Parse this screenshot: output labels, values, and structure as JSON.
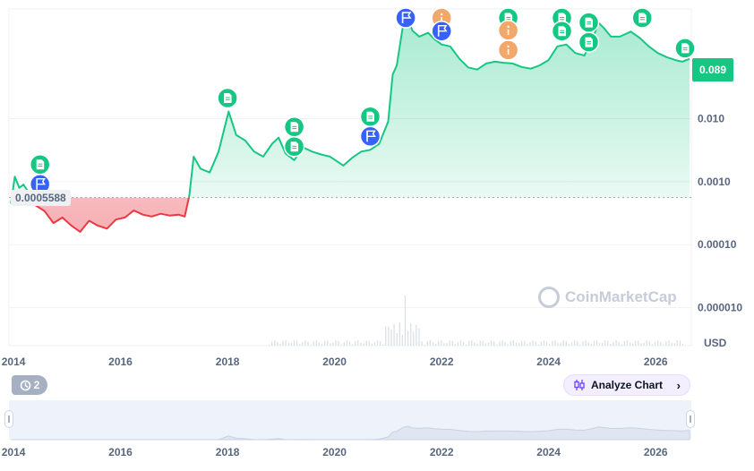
{
  "chart_data": {
    "type": "area",
    "scale": "log",
    "currency": "USD",
    "y_ticks": [
      {
        "label": "0.010",
        "value": 0.01
      },
      {
        "label": "0.0010",
        "value": 0.001
      },
      {
        "label": "0.00010",
        "value": 0.0001
      },
      {
        "label": "0.000010",
        "value": 1e-05
      }
    ],
    "x_ticks": [
      "2014",
      "2016",
      "2018",
      "2020",
      "2022",
      "2024",
      "2026"
    ],
    "baseline": {
      "label": "0.0005588",
      "value": 0.0005588
    },
    "current_price": {
      "label": "0.089",
      "value": 0.089
    },
    "series": [
      {
        "colors": {
          "above": "#16c784",
          "below": "#ea3943"
        },
        "points": [
          [
            "2013-12-15",
            0.00045
          ],
          [
            "2014-01-10",
            0.0012
          ],
          [
            "2014-02-10",
            0.0008
          ],
          [
            "2014-03-10",
            0.0009
          ],
          [
            "2014-04-10",
            0.0007
          ],
          [
            "2014-06-01",
            0.00042
          ],
          [
            "2014-08-01",
            0.00034
          ],
          [
            "2014-10-01",
            0.00022
          ],
          [
            "2014-12-01",
            0.00027
          ],
          [
            "2015-02-01",
            0.0002
          ],
          [
            "2015-04-01",
            0.00016
          ],
          [
            "2015-06-01",
            0.00024
          ],
          [
            "2015-08-01",
            0.0002
          ],
          [
            "2015-10-01",
            0.00018
          ],
          [
            "2015-12-01",
            0.00025
          ],
          [
            "2016-02-01",
            0.00027
          ],
          [
            "2016-04-01",
            0.00035
          ],
          [
            "2016-06-01",
            0.0003
          ],
          [
            "2016-08-01",
            0.00028
          ],
          [
            "2016-10-01",
            0.00031
          ],
          [
            "2016-12-01",
            0.00029
          ],
          [
            "2017-02-01",
            0.0003
          ],
          [
            "2017-03-15",
            0.00028
          ],
          [
            "2017-04-15",
            0.0006
          ],
          [
            "2017-05-15",
            0.0025
          ],
          [
            "2017-07-01",
            0.0016
          ],
          [
            "2017-09-01",
            0.0014
          ],
          [
            "2017-11-01",
            0.003
          ],
          [
            "2018-01-08",
            0.013
          ],
          [
            "2018-03-01",
            0.0055
          ],
          [
            "2018-05-01",
            0.0045
          ],
          [
            "2018-07-01",
            0.003
          ],
          [
            "2018-09-01",
            0.0025
          ],
          [
            "2018-11-01",
            0.004
          ],
          [
            "2018-12-15",
            0.005
          ],
          [
            "2019-02-01",
            0.0028
          ],
          [
            "2019-04-01",
            0.0022
          ],
          [
            "2019-06-01",
            0.0035
          ],
          [
            "2019-08-01",
            0.003
          ],
          [
            "2019-10-01",
            0.0027
          ],
          [
            "2019-12-01",
            0.0025
          ],
          [
            "2020-03-01",
            0.0018
          ],
          [
            "2020-05-01",
            0.0024
          ],
          [
            "2020-07-01",
            0.003
          ],
          [
            "2020-09-01",
            0.0032
          ],
          [
            "2020-11-01",
            0.004
          ],
          [
            "2021-01-01",
            0.009
          ],
          [
            "2021-02-01",
            0.05
          ],
          [
            "2021-03-01",
            0.07
          ],
          [
            "2021-04-10",
            0.28
          ],
          [
            "2021-05-15",
            0.4
          ],
          [
            "2021-06-15",
            0.25
          ],
          [
            "2021-08-01",
            0.2
          ],
          [
            "2021-10-01",
            0.23
          ],
          [
            "2021-11-15",
            0.18
          ],
          [
            "2022-01-01",
            0.15
          ],
          [
            "2022-03-01",
            0.14
          ],
          [
            "2022-05-01",
            0.09
          ],
          [
            "2022-07-01",
            0.065
          ],
          [
            "2022-09-01",
            0.06
          ],
          [
            "2022-11-01",
            0.075
          ],
          [
            "2023-01-01",
            0.08
          ],
          [
            "2023-03-01",
            0.077
          ],
          [
            "2023-05-01",
            0.075
          ],
          [
            "2023-07-01",
            0.066
          ],
          [
            "2023-09-01",
            0.062
          ],
          [
            "2023-11-01",
            0.07
          ],
          [
            "2024-01-01",
            0.085
          ],
          [
            "2024-03-01",
            0.14
          ],
          [
            "2024-05-01",
            0.15
          ],
          [
            "2024-07-01",
            0.11
          ],
          [
            "2024-09-01",
            0.1
          ],
          [
            "2024-11-01",
            0.2
          ],
          [
            "2024-12-08",
            0.33
          ],
          [
            "2025-01-15",
            0.27
          ],
          [
            "2025-03-01",
            0.2
          ],
          [
            "2025-05-01",
            0.2
          ],
          [
            "2025-07-15",
            0.24
          ],
          [
            "2025-09-15",
            0.19
          ],
          [
            "2025-11-15",
            0.14
          ],
          [
            "2026-01-15",
            0.11
          ],
          [
            "2026-03-15",
            0.095
          ],
          [
            "2026-05-15",
            0.085
          ],
          [
            "2026-07-01",
            0.08
          ],
          [
            "2026-08-20",
            0.089
          ]
        ]
      }
    ],
    "events": [
      {
        "date": "2014-07-01",
        "kind": "doc",
        "level": 1
      },
      {
        "date": "2014-07-01",
        "kind": "flag",
        "level": 0
      },
      {
        "date": "2018-01-01",
        "kind": "doc",
        "level": 0
      },
      {
        "date": "2019-04-01",
        "kind": "doc",
        "level": 1
      },
      {
        "date": "2019-04-01",
        "kind": "doc",
        "level": 0
      },
      {
        "date": "2020-09-01",
        "kind": "doc",
        "level": 1
      },
      {
        "date": "2020-09-01",
        "kind": "flag",
        "level": 0
      },
      {
        "date": "2021-05-01",
        "kind": "doc",
        "level": 2
      },
      {
        "date": "2021-05-01",
        "kind": "flag",
        "level": 1
      },
      {
        "date": "2021-05-01",
        "kind": "flag",
        "level": 0
      },
      {
        "date": "2022-01-01",
        "kind": "doc",
        "level": 2
      },
      {
        "date": "2022-01-01",
        "kind": "info",
        "level": 1
      },
      {
        "date": "2022-01-01",
        "kind": "flag",
        "level": 0
      },
      {
        "date": "2023-04-01",
        "kind": "doc",
        "level": 2
      },
      {
        "date": "2023-04-01",
        "kind": "info",
        "level": 1
      },
      {
        "date": "2023-04-01",
        "kind": "info",
        "level": 0
      },
      {
        "date": "2024-04-01",
        "kind": "doc",
        "level": 2
      },
      {
        "date": "2024-04-01",
        "kind": "doc",
        "level": 1
      },
      {
        "date": "2024-04-01",
        "kind": "doc",
        "level": 0
      },
      {
        "date": "2024-10-01",
        "kind": "doc",
        "level": 1
      },
      {
        "date": "2024-10-01",
        "kind": "doc",
        "level": 0
      },
      {
        "date": "2025-10-01",
        "kind": "doc",
        "level": 3
      },
      {
        "date": "2025-10-01",
        "kind": "doc",
        "level": 2
      },
      {
        "date": "2025-10-01",
        "kind": "doc",
        "level": 1
      },
      {
        "date": "2026-07-20",
        "kind": "doc",
        "level": 0
      }
    ],
    "grid": true,
    "legend": "none"
  },
  "toolbar": {
    "events_count": "2",
    "analyze_label": "Analyze Chart",
    "history-icon": "history-icon",
    "analyze-icon": "candlestick-icon"
  },
  "watermark": "CoinMarketCap",
  "colors": {
    "up": "#16c784",
    "down": "#ea3943",
    "flag": "#3861fb",
    "info": "#f0a86b",
    "navigator": "#eef2fb"
  }
}
